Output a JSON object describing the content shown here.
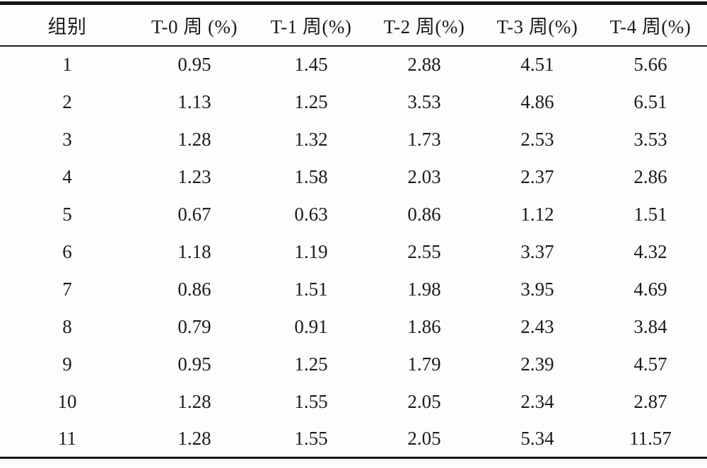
{
  "table": {
    "columns": [
      "组别",
      "T-0 周 (%)",
      "T-1 周(%)",
      "T-2 周(%)",
      "T-3 周(%)",
      "T-4 周(%)"
    ],
    "rows": [
      [
        "1",
        "0.95",
        "1.45",
        "2.88",
        "4.51",
        "5.66"
      ],
      [
        "2",
        "1.13",
        "1.25",
        "3.53",
        "4.86",
        "6.51"
      ],
      [
        "3",
        "1.28",
        "1.32",
        "1.73",
        "2.53",
        "3.53"
      ],
      [
        "4",
        "1.23",
        "1.58",
        "2.03",
        "2.37",
        "2.86"
      ],
      [
        "5",
        "0.67",
        "0.63",
        "0.86",
        "1.12",
        "1.51"
      ],
      [
        "6",
        "1.18",
        "1.19",
        "2.55",
        "3.37",
        "4.32"
      ],
      [
        "7",
        "0.86",
        "1.51",
        "1.98",
        "3.95",
        "4.69"
      ],
      [
        "8",
        "0.79",
        "0.91",
        "1.86",
        "2.43",
        "3.84"
      ],
      [
        "9",
        "0.95",
        "1.25",
        "1.79",
        "2.39",
        "4.57"
      ],
      [
        "10",
        "1.28",
        "1.55",
        "2.05",
        "2.34",
        "2.87"
      ],
      [
        "11",
        "1.28",
        "1.55",
        "2.05",
        "5.34",
        "11.57"
      ]
    ]
  },
  "colors": {
    "background": "#fdfdfc",
    "text": "#1b1b1b",
    "rule": "#161616"
  }
}
